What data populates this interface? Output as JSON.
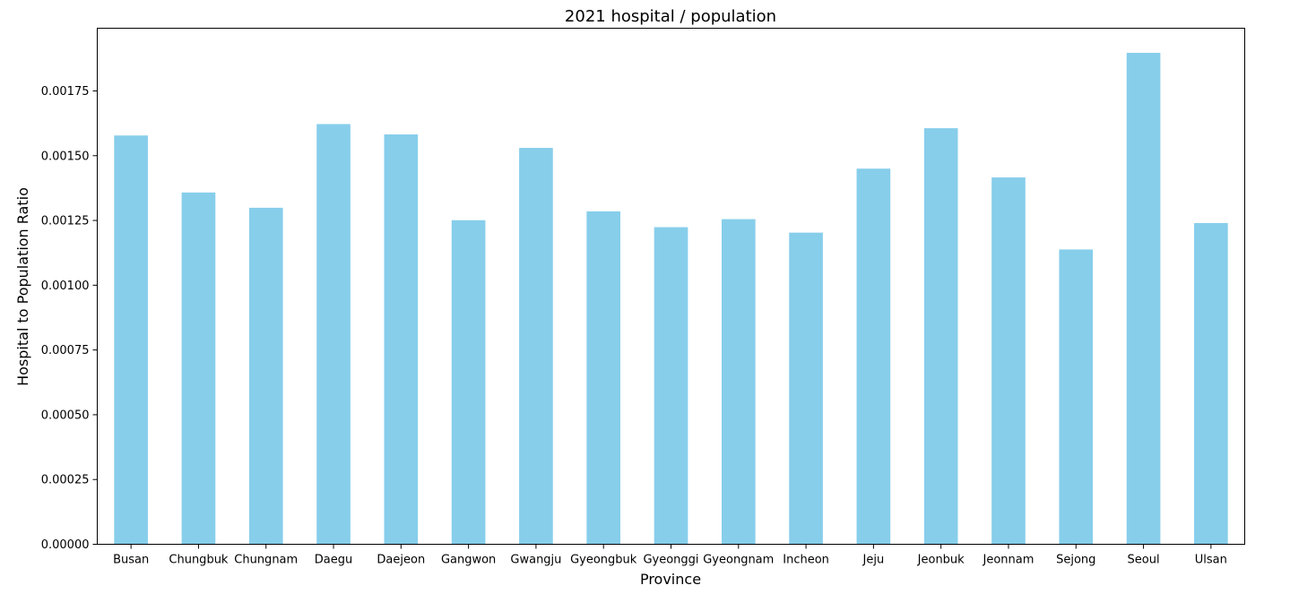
{
  "chart_data": {
    "type": "bar",
    "title": "2021 hospital / population",
    "xlabel": "Province",
    "ylabel": "Hospital to Population Ratio",
    "categories": [
      "Busan",
      "Chungbuk",
      "Chungnam",
      "Daegu",
      "Daejeon",
      "Gangwon",
      "Gwangju",
      "Gyeongbuk",
      "Gyeonggi",
      "Gyeongnam",
      "Incheon",
      "Jeju",
      "Jeonbuk",
      "Jeonnam",
      "Sejong",
      "Seoul",
      "Ulsan"
    ],
    "values": [
      0.001578,
      0.001358,
      0.001299,
      0.001622,
      0.001582,
      0.001251,
      0.00153,
      0.001285,
      0.001224,
      0.001255,
      0.001203,
      0.00145,
      0.001606,
      0.001416,
      0.001138,
      0.001897,
      0.00124
    ],
    "ylim": [
      0,
      0.001992
    ],
    "yticks": [
      0.0,
      0.00025,
      0.0005,
      0.00075,
      0.001,
      0.00125,
      0.0015,
      0.00175
    ],
    "ytick_labels": [
      "0.00000",
      "0.00025",
      "0.00050",
      "0.00075",
      "0.00100",
      "0.00125",
      "0.00150",
      "0.00175"
    ],
    "bar_color": "#87CEEB",
    "grid": false,
    "legend": "none"
  }
}
